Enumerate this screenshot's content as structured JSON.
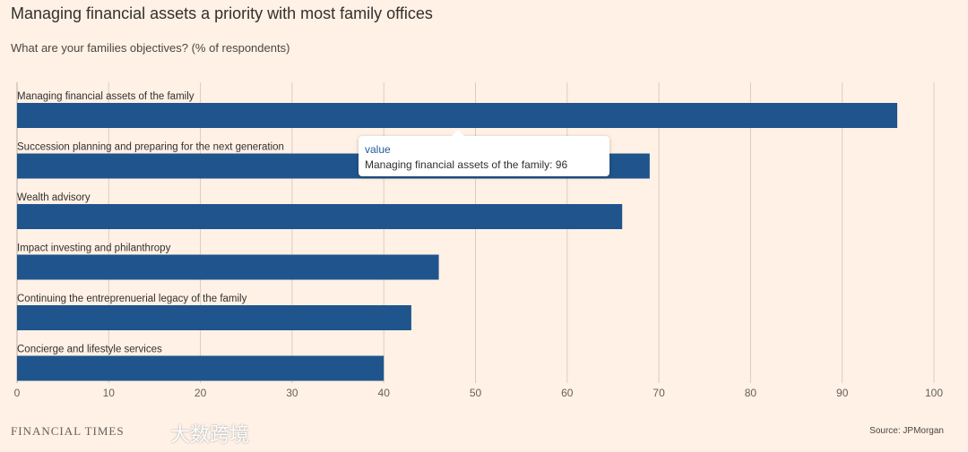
{
  "title": "Managing financial assets a priority with most family offices",
  "subtitle": "What are your families objectives? (% of respondents)",
  "source": "Source: JPMorgan",
  "logo": "FINANCIAL TIMES",
  "watermark": "大数跨境",
  "tooltip": {
    "header": "value",
    "body": "Managing financial assets of the family: 96"
  },
  "colors": {
    "bar": "#1f558c",
    "grid": "#d9cdc3",
    "background": "#fff1e5"
  },
  "chart_data": {
    "type": "bar",
    "orientation": "horizontal",
    "categories": [
      "Managing financial assets of the family",
      "Succession planning and preparing for the next generation",
      "Wealth advisory",
      "Impact investing and philanthropy",
      "Continuing the entreprenuerial legacy of the family",
      "Concierge and lifestyle services"
    ],
    "values": [
      96,
      69,
      66,
      46,
      43,
      40
    ],
    "xlim": [
      0,
      100
    ],
    "xticks": [
      0,
      10,
      20,
      30,
      40,
      50,
      60,
      70,
      80,
      90,
      100
    ],
    "grid": true,
    "title": "Managing financial assets a priority with most family offices",
    "subtitle": "What are your families objectives? (% of respondents)"
  }
}
